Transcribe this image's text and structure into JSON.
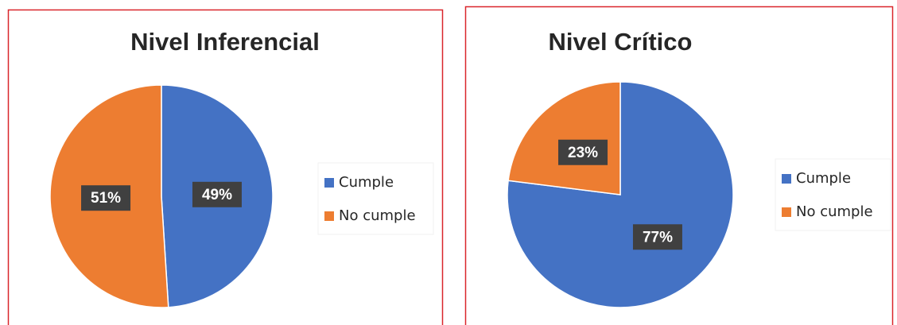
{
  "chart_data": [
    {
      "type": "pie",
      "title": "Nivel Inferencial",
      "categories": [
        "Cumple",
        "No cumple"
      ],
      "values": [
        49,
        51
      ],
      "value_labels": [
        "49%",
        "51%"
      ],
      "colors": [
        "#4472c4",
        "#ed7d31"
      ]
    },
    {
      "type": "pie",
      "title": "Nivel Crítico",
      "categories": [
        "Cumple",
        "No cumple"
      ],
      "values": [
        77,
        23
      ],
      "value_labels": [
        "77%",
        "23%"
      ],
      "colors": [
        "#4472c4",
        "#ed7d31"
      ]
    }
  ]
}
